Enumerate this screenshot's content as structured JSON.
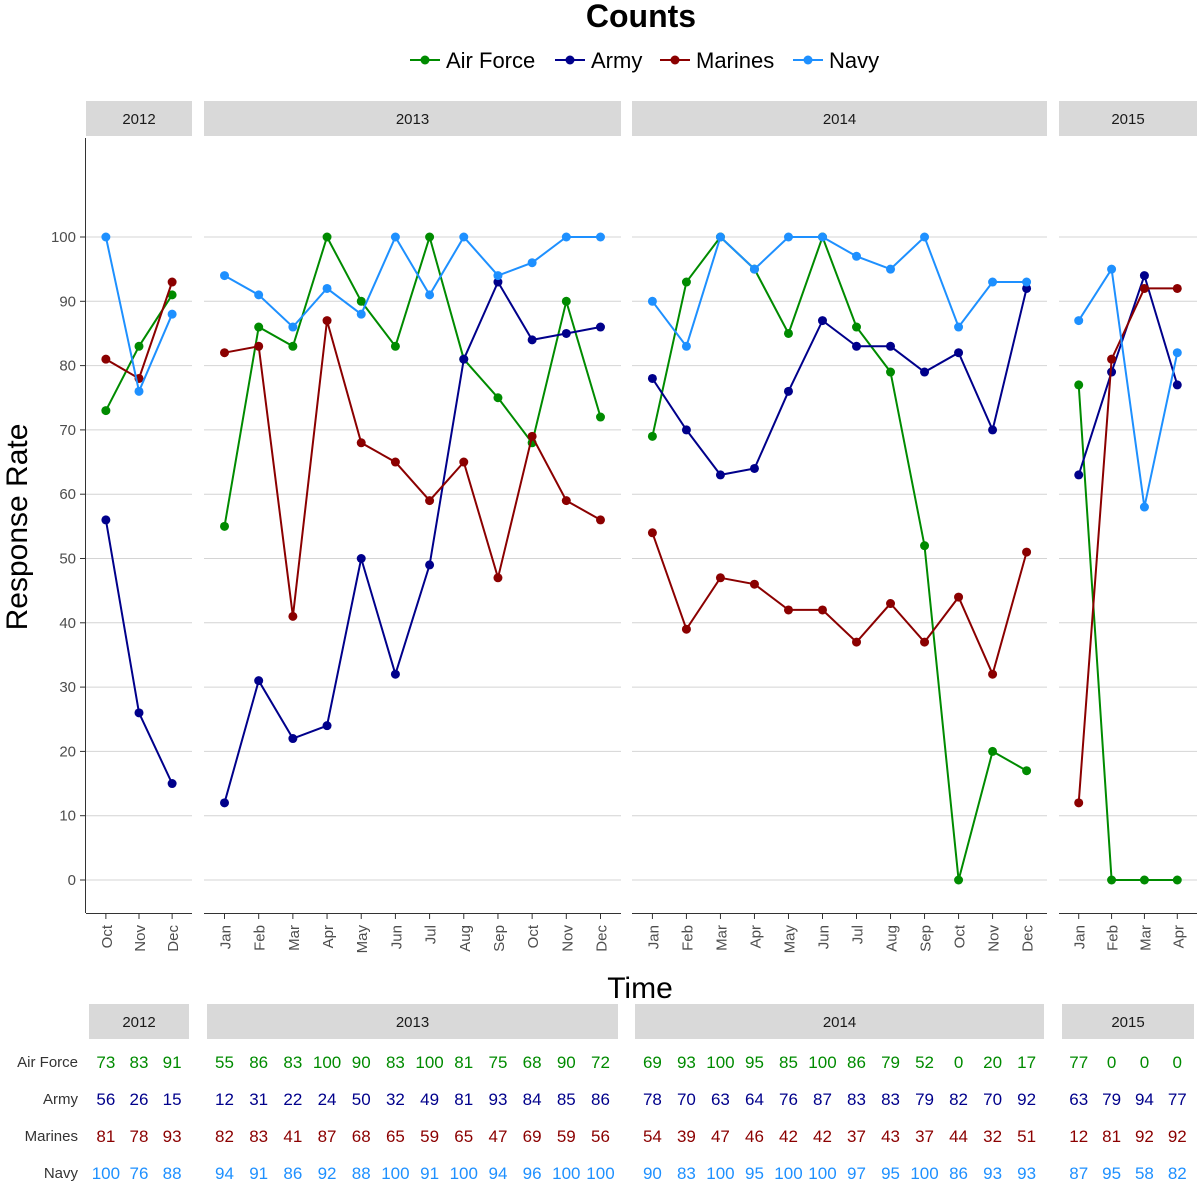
{
  "chart_data": {
    "type": "line",
    "title": "Counts",
    "xlabel": "Time",
    "ylabel": "Response Rate",
    "ylim": [
      0,
      100
    ],
    "yticks": [
      0,
      10,
      20,
      30,
      40,
      50,
      60,
      70,
      80,
      90,
      100
    ],
    "legend_position": "top",
    "grid": true,
    "series": [
      {
        "name": "Air Force",
        "color": "#008b00"
      },
      {
        "name": "Army",
        "color": "#00008b"
      },
      {
        "name": "Marines",
        "color": "#8b0000"
      },
      {
        "name": "Navy",
        "color": "#1e90ff"
      }
    ],
    "panels": [
      {
        "year": "2012",
        "months": [
          "Oct",
          "Nov",
          "Dec"
        ],
        "values": {
          "Air Force": [
            73,
            83,
            91
          ],
          "Army": [
            56,
            26,
            15
          ],
          "Marines": [
            81,
            78,
            93
          ],
          "Navy": [
            100,
            76,
            88
          ]
        }
      },
      {
        "year": "2013",
        "months": [
          "Jan",
          "Feb",
          "Mar",
          "Apr",
          "May",
          "Jun",
          "Jul",
          "Aug",
          "Sep",
          "Oct",
          "Nov",
          "Dec"
        ],
        "values": {
          "Air Force": [
            55,
            86,
            83,
            100,
            90,
            83,
            100,
            81,
            75,
            68,
            90,
            72
          ],
          "Army": [
            12,
            31,
            22,
            24,
            50,
            32,
            49,
            81,
            93,
            84,
            85,
            86
          ],
          "Marines": [
            82,
            83,
            41,
            87,
            68,
            65,
            59,
            65,
            47,
            69,
            59,
            56
          ],
          "Navy": [
            94,
            91,
            86,
            92,
            88,
            100,
            91,
            100,
            94,
            96,
            100,
            100
          ]
        }
      },
      {
        "year": "2014",
        "months": [
          "Jan",
          "Feb",
          "Mar",
          "Apr",
          "May",
          "Jun",
          "Jul",
          "Aug",
          "Sep",
          "Oct",
          "Nov",
          "Dec"
        ],
        "values": {
          "Air Force": [
            69,
            93,
            100,
            95,
            85,
            100,
            86,
            79,
            52,
            0,
            20,
            17
          ],
          "Army": [
            78,
            70,
            63,
            64,
            76,
            87,
            83,
            83,
            79,
            82,
            70,
            92
          ],
          "Marines": [
            54,
            39,
            47,
            46,
            42,
            42,
            37,
            43,
            37,
            44,
            32,
            51
          ],
          "Navy": [
            90,
            83,
            100,
            95,
            100,
            100,
            97,
            95,
            100,
            86,
            93,
            93
          ]
        }
      },
      {
        "year": "2015",
        "months": [
          "Jan",
          "Feb",
          "Mar",
          "Apr"
        ],
        "values": {
          "Air Force": [
            77,
            0,
            0,
            0
          ],
          "Army": [
            63,
            79,
            94,
            77
          ],
          "Marines": [
            12,
            81,
            92,
            92
          ],
          "Navy": [
            87,
            95,
            58,
            82
          ]
        }
      }
    ]
  }
}
